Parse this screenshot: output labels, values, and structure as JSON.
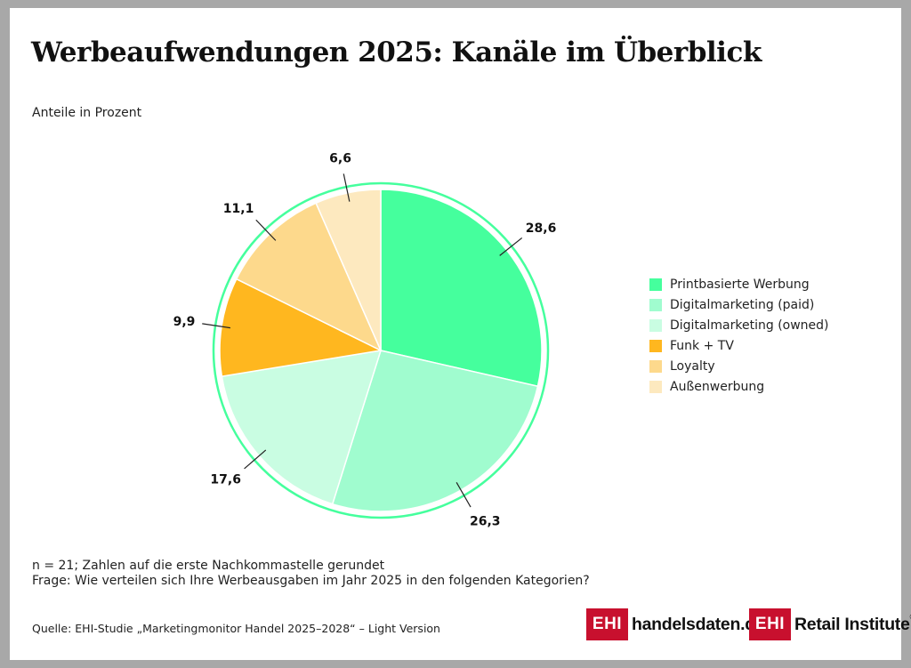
{
  "header": {
    "title": "Werbeaufwendungen 2025: Kanäle im Überblick",
    "subtitle": "Anteile in Prozent"
  },
  "chart_data": {
    "type": "pie",
    "title": "Werbeaufwendungen 2025: Kanäle im Überblick",
    "subtitle": "Anteile in Prozent",
    "legend_position": "right",
    "slices": [
      {
        "label": "Printbasierte Werbung",
        "value": 28.6,
        "display": "28,6",
        "color": "#45ff9d"
      },
      {
        "label": "Digitalmarketing (paid)",
        "value": 26.3,
        "display": "26,3",
        "color": "#a0fccf"
      },
      {
        "label": "Digitalmarketing (owned)",
        "value": 17.6,
        "display": "17,6",
        "color": "#c9fde2"
      },
      {
        "label": "Funk + TV",
        "value": 9.9,
        "display": "9,9",
        "color": "#ffb71f"
      },
      {
        "label": "Loyalty",
        "value": 11.1,
        "display": "11,1",
        "color": "#fdd98c"
      },
      {
        "label": "Außenwerbung",
        "value": 6.6,
        "display": "6,6",
        "color": "#fde9bf"
      }
    ],
    "ring_color": "#45ff9d"
  },
  "footer": {
    "note_line1": "n = 21; Zahlen auf die erste Nachkommastelle gerundet",
    "note_line2": "Frage: Wie verteilen sich Ihre Werbeausgaben im Jahr 2025 in den folgenden Kategorien?",
    "source": "Quelle: EHI-Studie „Marketingmonitor Handel 2025–2028“ – Light Version"
  },
  "logos": {
    "logo1_box": "EHI",
    "logo1_text": "handelsdaten.de",
    "logo2_box": "EHI",
    "logo2_text": "Retail Institute",
    "logo2_mark": "®",
    "brand_color": "#c8102e"
  }
}
